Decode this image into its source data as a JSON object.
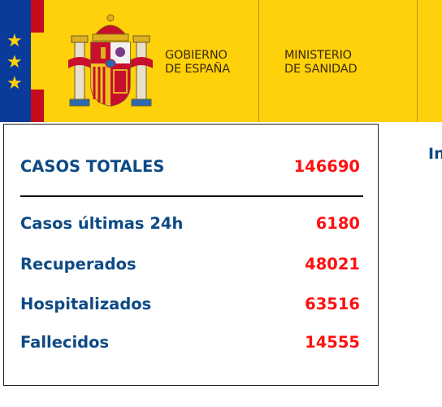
{
  "header": {
    "government_label_line1": "GOBIERNO",
    "government_label_line2": "DE ESPAÑA",
    "ministry_label_line1": "MINISTERIO",
    "ministry_label_line2": "DE SANIDAD"
  },
  "stats": {
    "total_label": "CASOS TOTALES",
    "total_value": "146690",
    "rows": [
      {
        "label": "Casos últimas 24h",
        "value": "6180"
      },
      {
        "label": "Recuperados",
        "value": "48021"
      },
      {
        "label": "Hospitalizados",
        "value": "63516"
      },
      {
        "label": "Fallecidos",
        "value": "14555"
      }
    ]
  },
  "side_heading": "In",
  "colors": {
    "banner": "#fed10a",
    "eu_blue": "#0a3a9a",
    "label_blue": "#0d4a85",
    "value_red": "#ff1010"
  }
}
